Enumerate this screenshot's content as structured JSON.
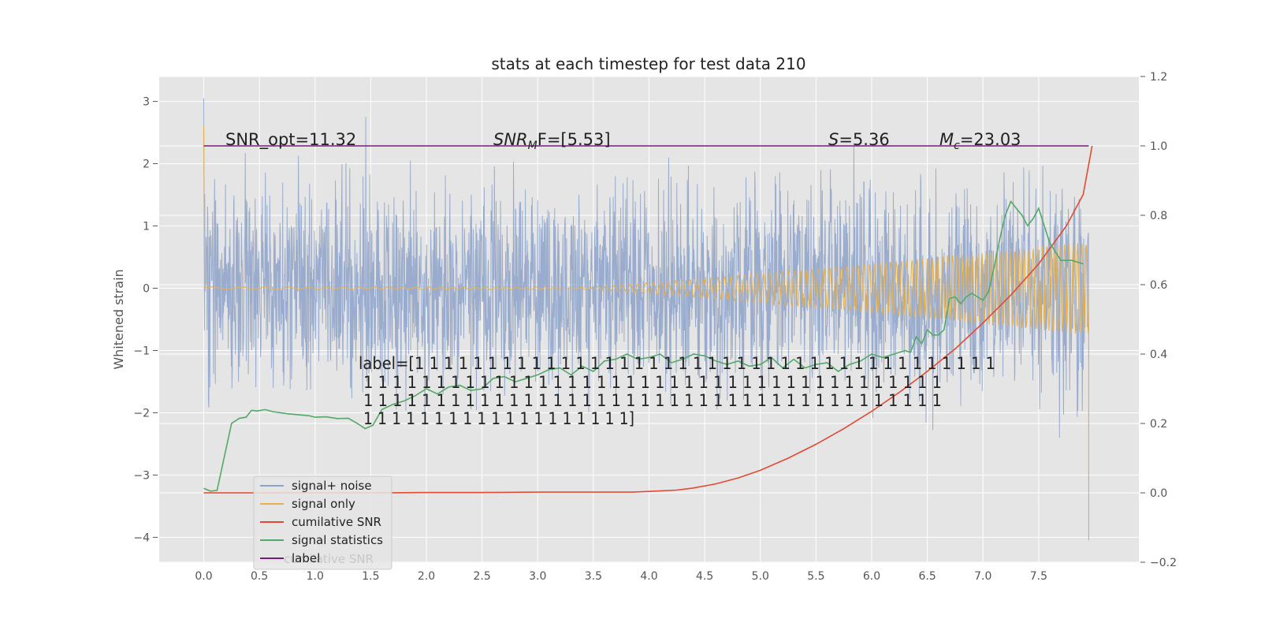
{
  "chart_data": {
    "type": "line",
    "title": "stats at each timestep for test data 210",
    "ylabel": "Whitened strain",
    "xlabel": "",
    "xlim": [
      -0.4,
      8.4
    ],
    "ylim": [
      -4.4,
      3.4
    ],
    "y2lim": [
      -0.2,
      1.2
    ],
    "xticks": [
      0.0,
      0.5,
      1.0,
      1.5,
      2.0,
      2.5,
      3.0,
      3.5,
      4.0,
      4.5,
      5.0,
      5.5,
      6.0,
      6.5,
      7.0,
      7.5
    ],
    "xtick_labels": [
      "0.0",
      "0.5",
      "1.0",
      "1.5",
      "2.0",
      "2.5",
      "3.0",
      "3.5",
      "4.0",
      "4.5",
      "5.0",
      "5.5",
      "6.0",
      "6.5",
      "7.0",
      "7.5"
    ],
    "yticks": [
      -4,
      -3,
      -2,
      -1,
      0,
      1,
      2,
      3
    ],
    "ytick_labels": [
      "−4",
      "−3",
      "−2",
      "−1",
      "0",
      "1",
      "2",
      "3"
    ],
    "y2ticks": [
      -0.2,
      0.0,
      0.2,
      0.4,
      0.6,
      0.8,
      1.0,
      1.2
    ],
    "y2tick_labels": [
      "−0.2",
      "0.0",
      "0.2",
      "0.4",
      "0.6",
      "0.8",
      "1.0",
      "1.2"
    ],
    "grid": true,
    "legend_position": "lower-left",
    "colors": {
      "noise": "#8da2c9",
      "signal": "#e6b04a",
      "cumulative": "#e24a33",
      "stats": "#55a868",
      "label": "#7a1d7a",
      "background": "#e5e5e5"
    },
    "series": [
      {
        "name": "signal+ noise",
        "axis": "left",
        "note_range": [
          -2.4,
          3.05
        ],
        "final_spike": -4.05
      },
      {
        "name": "signal only",
        "axis": "left",
        "note_amplitude_end": 0.75
      },
      {
        "name": "cumilative SNR",
        "axis": "right",
        "x": [
          0.0,
          0.5,
          1.0,
          1.5,
          2.0,
          2.5,
          3.0,
          3.5,
          3.85,
          4.0,
          4.25,
          4.4,
          4.6,
          4.8,
          5.0,
          5.25,
          5.5,
          5.75,
          6.0,
          6.25,
          6.5,
          6.75,
          7.0,
          7.25,
          7.5,
          7.75,
          7.9,
          7.98
        ],
        "y": [
          0.0,
          0.0,
          0.0,
          0.0,
          0.001,
          0.001,
          0.002,
          0.002,
          0.002,
          0.004,
          0.008,
          0.014,
          0.026,
          0.043,
          0.065,
          0.1,
          0.14,
          0.185,
          0.235,
          0.29,
          0.35,
          0.415,
          0.49,
          0.57,
          0.66,
          0.77,
          0.86,
          1.0
        ]
      },
      {
        "name": "signal statistics",
        "axis": "right",
        "x": [
          0.0,
          0.06,
          0.12,
          0.25,
          0.32,
          0.38,
          0.43,
          0.48,
          0.55,
          0.62,
          0.75,
          0.95,
          1.0,
          1.1,
          1.2,
          1.3,
          1.38,
          1.45,
          1.52,
          1.6,
          1.7,
          1.8,
          1.9,
          2.0,
          2.1,
          2.2,
          2.3,
          2.4,
          2.5,
          2.6,
          2.7,
          2.8,
          2.9,
          3.0,
          3.1,
          3.2,
          3.3,
          3.4,
          3.5,
          3.6,
          3.7,
          3.8,
          3.9,
          4.0,
          4.1,
          4.2,
          4.3,
          4.4,
          4.5,
          4.6,
          4.7,
          4.8,
          4.9,
          5.0,
          5.1,
          5.2,
          5.3,
          5.4,
          5.5,
          5.6,
          5.7,
          5.8,
          5.9,
          6.0,
          6.1,
          6.2,
          6.3,
          6.35,
          6.4,
          6.45,
          6.5,
          6.55,
          6.6,
          6.65,
          6.7,
          6.75,
          6.8,
          6.85,
          6.9,
          6.95,
          7.0,
          7.05,
          7.1,
          7.15,
          7.2,
          7.25,
          7.3,
          7.35,
          7.4,
          7.45,
          7.5,
          7.6,
          7.7,
          7.8,
          7.9
        ],
        "y": [
          0.013,
          0.005,
          0.007,
          0.2,
          0.215,
          0.218,
          0.238,
          0.236,
          0.24,
          0.234,
          0.228,
          0.222,
          0.218,
          0.219,
          0.214,
          0.215,
          0.2,
          0.185,
          0.195,
          0.24,
          0.255,
          0.265,
          0.28,
          0.3,
          0.285,
          0.305,
          0.31,
          0.295,
          0.3,
          0.33,
          0.335,
          0.32,
          0.33,
          0.34,
          0.355,
          0.36,
          0.34,
          0.365,
          0.35,
          0.38,
          0.385,
          0.4,
          0.385,
          0.39,
          0.4,
          0.375,
          0.385,
          0.4,
          0.395,
          0.38,
          0.37,
          0.38,
          0.365,
          0.37,
          0.39,
          0.36,
          0.385,
          0.36,
          0.37,
          0.375,
          0.35,
          0.37,
          0.38,
          0.4,
          0.39,
          0.4,
          0.41,
          0.405,
          0.45,
          0.43,
          0.47,
          0.455,
          0.455,
          0.47,
          0.56,
          0.565,
          0.545,
          0.565,
          0.575,
          0.565,
          0.555,
          0.58,
          0.65,
          0.73,
          0.8,
          0.84,
          0.82,
          0.8,
          0.77,
          0.79,
          0.82,
          0.72,
          0.67,
          0.67,
          0.66
        ]
      },
      {
        "name": "label",
        "axis": "right",
        "x": [
          0.0,
          7.95
        ],
        "y": [
          1.0,
          1.0
        ]
      }
    ],
    "annotations": {
      "snr_opt": "SNR_opt=11.32",
      "snr_mf_main": "SNR",
      "snr_mf_sub": "M",
      "snr_mf_rest": "F=[5.53]",
      "s_var": "S",
      "s_rest": "=5.36",
      "mc_var": "M",
      "mc_sub": "c",
      "mc_rest": "=23.03",
      "label_lines": [
        "label=[1 1 1 1 1 1 1 1 1 1 1 1 1 1 1 1 1 1 1 1 1 1 1 1 1 1 1 1 1 1 1 1 1 1 1 1 1 1 1 1",
        " 1 1 1 1 1 1 1 1 1 1 1 1 1 1 1 1 1 1 1 1 1 1 1 1 1 1 1 1 1 1 1 1 1 1 1 1 1 1 1 1",
        " 1 1 1 1 1 1 1 1 1 1 1 1 1 1 1 1 1 1 1 1 1 1 1 1 1 1 1 1 1 1 1 1 1 1 1 1 1 1 1 1",
        " 1 1 1 1 1 1 1 1 1 1 1 1 1 1 1 1 1 1 1]"
      ]
    },
    "legend": {
      "entries": [
        "signal+ noise",
        "signal only",
        "cumilative SNR",
        "signal statistics",
        "label"
      ],
      "ghost_text": "cumilative SNR"
    }
  }
}
